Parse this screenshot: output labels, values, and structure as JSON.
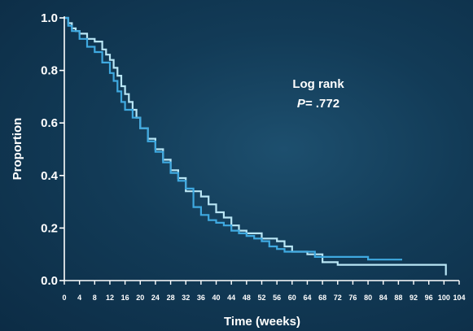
{
  "chart_data": {
    "type": "line",
    "subtype": "kaplan-meier step curve",
    "title": "",
    "xlabel": "Time (weeks)",
    "ylabel": "Proportion",
    "xlim": [
      0,
      104
    ],
    "ylim": [
      0,
      1.0
    ],
    "x_ticks": [
      "0",
      "4",
      "8",
      "12",
      "16",
      "20",
      "24",
      "28",
      "32",
      "36",
      "40",
      "44",
      "48",
      "52",
      "56",
      "60",
      "64",
      "68",
      "72",
      "76",
      "80",
      "84",
      "88",
      "92",
      "96",
      "100",
      "104"
    ],
    "y_ticks": [
      "0.0",
      "0.2",
      "0.4",
      "0.6",
      "0.8",
      "1.0"
    ],
    "annotation": {
      "line1": "Log rank",
      "p_label": "P",
      "p_value": "= .772"
    },
    "grid": false,
    "series": [
      {
        "color": "#b9e6f5",
        "points": [
          [
            0,
            1.0
          ],
          [
            1,
            0.98
          ],
          [
            2,
            0.96
          ],
          [
            3,
            0.95
          ],
          [
            4,
            0.94
          ],
          [
            6,
            0.92
          ],
          [
            8,
            0.91
          ],
          [
            10,
            0.88
          ],
          [
            11,
            0.86
          ],
          [
            12,
            0.84
          ],
          [
            13,
            0.81
          ],
          [
            14,
            0.78
          ],
          [
            15,
            0.74
          ],
          [
            16,
            0.71
          ],
          [
            17,
            0.68
          ],
          [
            18,
            0.65
          ],
          [
            19,
            0.62
          ],
          [
            20,
            0.58
          ],
          [
            22,
            0.54
          ],
          [
            24,
            0.5
          ],
          [
            26,
            0.46
          ],
          [
            28,
            0.42
          ],
          [
            30,
            0.39
          ],
          [
            32,
            0.34
          ],
          [
            34,
            0.34
          ],
          [
            35,
            0.34
          ],
          [
            36,
            0.32
          ],
          [
            38,
            0.29
          ],
          [
            40,
            0.26
          ],
          [
            42,
            0.24
          ],
          [
            44,
            0.21
          ],
          [
            46,
            0.19
          ],
          [
            48,
            0.18
          ],
          [
            50,
            0.18
          ],
          [
            52,
            0.16
          ],
          [
            54,
            0.16
          ],
          [
            56,
            0.15
          ],
          [
            58,
            0.13
          ],
          [
            60,
            0.11
          ],
          [
            62,
            0.11
          ],
          [
            64,
            0.1
          ],
          [
            66,
            0.1
          ],
          [
            68,
            0.07
          ],
          [
            70,
            0.07
          ],
          [
            72,
            0.06
          ],
          [
            80,
            0.06
          ],
          [
            90,
            0.06
          ],
          [
            100,
            0.06
          ],
          [
            100.5,
            0.02
          ]
        ]
      },
      {
        "color": "#3fa9e0",
        "points": [
          [
            0,
            1.0
          ],
          [
            1,
            0.97
          ],
          [
            2,
            0.95
          ],
          [
            4,
            0.92
          ],
          [
            6,
            0.89
          ],
          [
            8,
            0.87
          ],
          [
            10,
            0.83
          ],
          [
            12,
            0.79
          ],
          [
            13,
            0.76
          ],
          [
            14,
            0.72
          ],
          [
            15,
            0.68
          ],
          [
            16,
            0.65
          ],
          [
            18,
            0.62
          ],
          [
            20,
            0.58
          ],
          [
            22,
            0.53
          ],
          [
            24,
            0.49
          ],
          [
            26,
            0.45
          ],
          [
            28,
            0.41
          ],
          [
            30,
            0.38
          ],
          [
            32,
            0.35
          ],
          [
            34,
            0.28
          ],
          [
            36,
            0.25
          ],
          [
            38,
            0.23
          ],
          [
            40,
            0.22
          ],
          [
            42,
            0.21
          ],
          [
            44,
            0.19
          ],
          [
            46,
            0.18
          ],
          [
            48,
            0.17
          ],
          [
            50,
            0.16
          ],
          [
            52,
            0.15
          ],
          [
            54,
            0.13
          ],
          [
            56,
            0.12
          ],
          [
            58,
            0.11
          ],
          [
            60,
            0.11
          ],
          [
            62,
            0.11
          ],
          [
            66,
            0.09
          ],
          [
            70,
            0.09
          ],
          [
            76,
            0.09
          ],
          [
            80,
            0.08
          ],
          [
            84,
            0.08
          ],
          [
            88,
            0.08
          ],
          [
            89,
            0.08
          ]
        ]
      }
    ]
  }
}
